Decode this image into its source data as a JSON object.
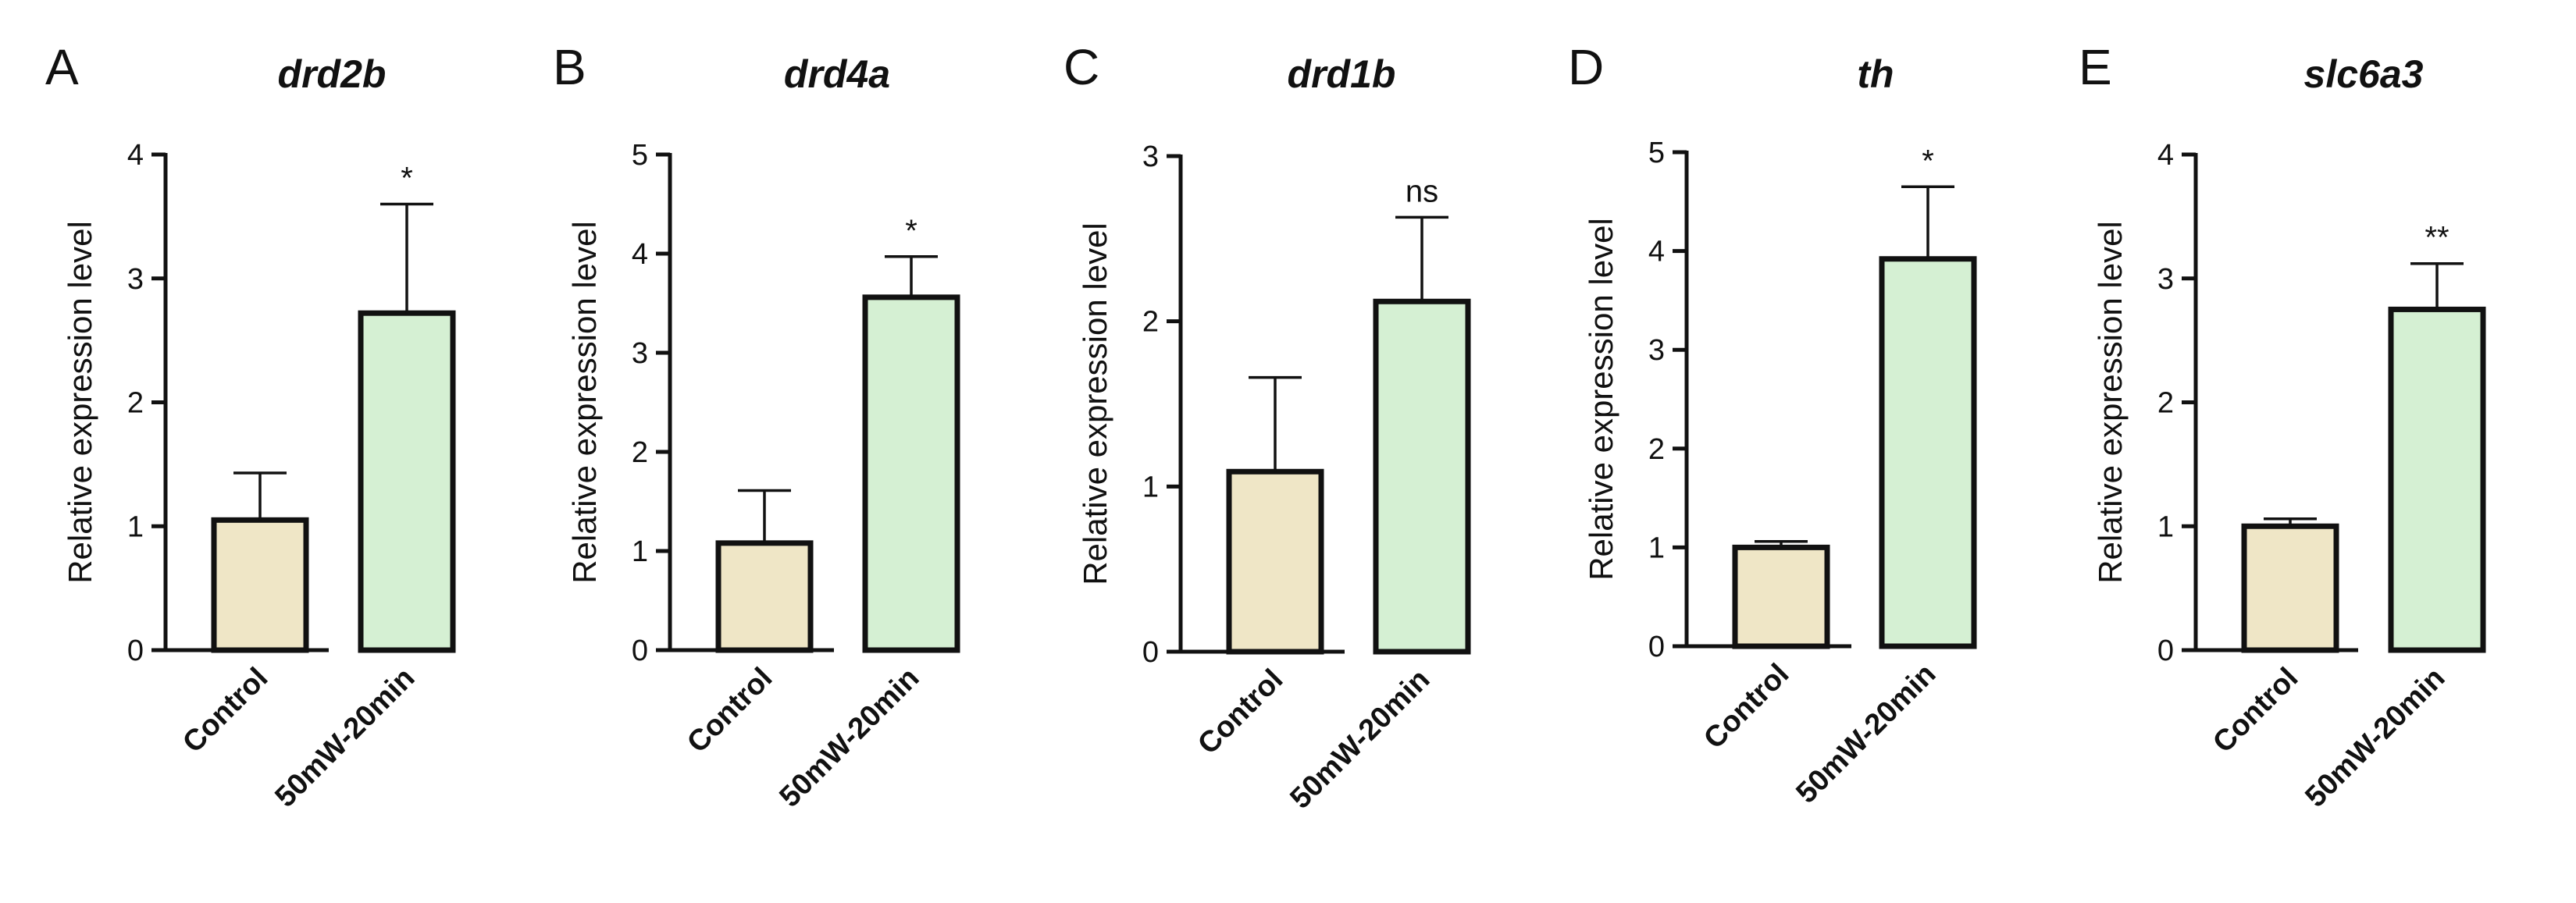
{
  "chart_data": [
    {
      "type": "bar",
      "panel": "A",
      "title": "drd2b",
      "ylabel": "Relative expression level",
      "categories": [
        "Control",
        "50mW-20min"
      ],
      "values": [
        1.05,
        2.72
      ],
      "errors": [
        0.38,
        0.88
      ],
      "significance": "*",
      "ylim": [
        0,
        4
      ],
      "yticks": [
        "0",
        "1",
        "2",
        "3",
        "4"
      ],
      "colors": [
        "#efe6c6",
        "#d5f0d3"
      ]
    },
    {
      "type": "bar",
      "panel": "B",
      "title": "drd4a",
      "ylabel": "Relative expression level",
      "categories": [
        "Control",
        "50mW-20min"
      ],
      "values": [
        1.08,
        3.56
      ],
      "errors": [
        0.53,
        0.41
      ],
      "significance": "*",
      "ylim": [
        0,
        5
      ],
      "yticks": [
        "0",
        "1",
        "2",
        "3",
        "4",
        "5"
      ],
      "colors": [
        "#efe6c6",
        "#d5f0d3"
      ]
    },
    {
      "type": "bar",
      "panel": "C",
      "title": "drd1b",
      "ylabel": "Relative expression level",
      "categories": [
        "Control",
        "50mW-20min"
      ],
      "values": [
        1.09,
        2.12
      ],
      "errors": [
        0.57,
        0.51
      ],
      "significance": "ns",
      "ylim": [
        0,
        3
      ],
      "yticks": [
        "0",
        "1",
        "2",
        "3"
      ],
      "colors": [
        "#efe6c6",
        "#d5f0d3"
      ]
    },
    {
      "type": "bar",
      "panel": "D",
      "title": "th",
      "ylabel": "Relative expression level",
      "categories": [
        "Control",
        "50mW-20min"
      ],
      "values": [
        1.0,
        3.92
      ],
      "errors": [
        0.06,
        0.73
      ],
      "significance": "*",
      "ylim": [
        0,
        5
      ],
      "yticks": [
        "0",
        "1",
        "2",
        "3",
        "4",
        "5"
      ],
      "colors": [
        "#efe6c6",
        "#d5f0d3"
      ]
    },
    {
      "type": "bar",
      "panel": "E",
      "title": "slc6a3",
      "ylabel": "Relative expression level",
      "categories": [
        "Control",
        "50mW-20min"
      ],
      "values": [
        1.0,
        2.75
      ],
      "errors": [
        0.06,
        0.37
      ],
      "significance": "**",
      "ylim": [
        0,
        4
      ],
      "yticks": [
        "0",
        "1",
        "2",
        "3",
        "4"
      ],
      "colors": [
        "#efe6c6",
        "#d5f0d3"
      ]
    }
  ]
}
